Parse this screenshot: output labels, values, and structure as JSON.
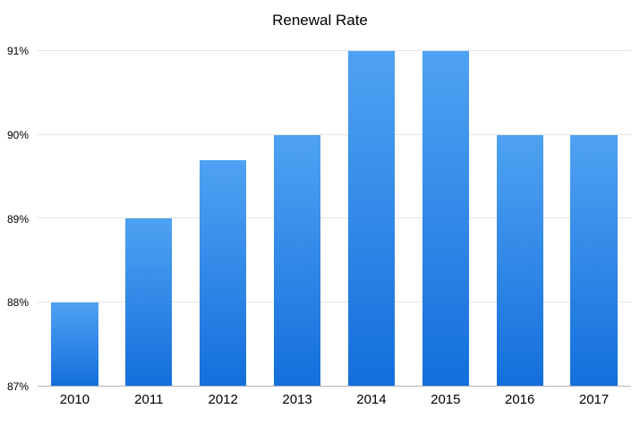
{
  "chart_data": {
    "type": "bar",
    "title": "Renewal Rate",
    "categories": [
      "2010",
      "2011",
      "2012",
      "2013",
      "2014",
      "2015",
      "2016",
      "2017"
    ],
    "values": [
      88,
      89,
      89.7,
      90,
      91,
      91,
      90,
      90
    ],
    "xlabel": "",
    "ylabel": "",
    "ylim": [
      87,
      91
    ],
    "yticks": [
      87,
      88,
      89,
      90,
      91
    ],
    "ytick_labels": [
      "87%",
      "88%",
      "89%",
      "90%",
      "91%"
    ],
    "grid": true,
    "legend": false,
    "colors": {
      "bar_gradient_top": "#4fa2f2",
      "bar_gradient_bottom": "#146fdc",
      "gridline": "#e4e4e4",
      "axis_line": "#b5b5b5",
      "text": "#000000",
      "background": "#ffffff"
    }
  }
}
